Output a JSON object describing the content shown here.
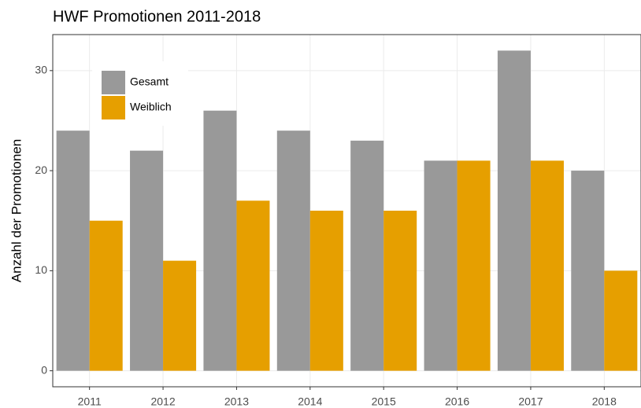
{
  "chart_data": {
    "type": "bar",
    "title": "HWF Promotionen 2011-2018",
    "y_label": "Anzahl der Promotionen",
    "categories": [
      "2011",
      "2012",
      "2013",
      "2014",
      "2015",
      "2016",
      "2017",
      "2018"
    ],
    "series": [
      {
        "name": "Gesamt",
        "color": "#999999",
        "values": [
          24,
          22,
          26,
          24,
          23,
          21,
          32,
          20
        ]
      },
      {
        "name": "Weiblich",
        "color": "#e69f00",
        "values": [
          15,
          11,
          17,
          16,
          16,
          21,
          21,
          10
        ]
      }
    ],
    "ylim": [
      -1.6,
      33.6
    ],
    "yticks": [
      0,
      10,
      20,
      30
    ],
    "grid": true,
    "legend": "top-left"
  }
}
